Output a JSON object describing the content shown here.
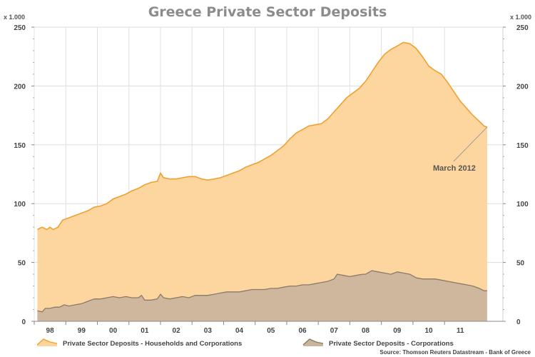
{
  "chart_data": {
    "type": "area",
    "title": "Greece Private Sector Deposits",
    "y_unit_left": "x 1.000",
    "y_unit_right": "x 1.000",
    "ylim": [
      0,
      250
    ],
    "yticks": [
      0,
      50,
      100,
      150,
      200,
      250
    ],
    "xlim": [
      1997.5,
      2012.35
    ],
    "x_tick_labels": [
      {
        "x": 1998.0,
        "label": "98"
      },
      {
        "x": 1999.0,
        "label": "99"
      },
      {
        "x": 2000.0,
        "label": "00"
      },
      {
        "x": 2001.0,
        "label": "01"
      },
      {
        "x": 2002.0,
        "label": "02"
      },
      {
        "x": 2003.0,
        "label": "03"
      },
      {
        "x": 2004.0,
        "label": "04"
      },
      {
        "x": 2005.0,
        "label": "05"
      },
      {
        "x": 2006.0,
        "label": "06"
      },
      {
        "x": 2007.0,
        "label": "07"
      },
      {
        "x": 2008.0,
        "label": "08"
      },
      {
        "x": 2009.0,
        "label": "09"
      },
      {
        "x": 2010.0,
        "label": "10"
      },
      {
        "x": 2011.0,
        "label": "11"
      }
    ],
    "grid": true,
    "legend_position": "bottom",
    "series": [
      {
        "name": "Private Sector Deposits - Households and Corporations",
        "color": "#f0a030",
        "fill": "#fdd49a",
        "points": [
          [
            1997.6,
            78
          ],
          [
            1997.75,
            80
          ],
          [
            1997.9,
            78
          ],
          [
            1998.0,
            80
          ],
          [
            1998.1,
            78
          ],
          [
            1998.25,
            80
          ],
          [
            1998.4,
            86
          ],
          [
            1998.6,
            88
          ],
          [
            1998.8,
            90
          ],
          [
            1999.0,
            92
          ],
          [
            1999.2,
            94
          ],
          [
            1999.4,
            97
          ],
          [
            1999.6,
            98
          ],
          [
            1999.8,
            100
          ],
          [
            2000.0,
            104
          ],
          [
            2000.2,
            106
          ],
          [
            2000.4,
            108
          ],
          [
            2000.6,
            111
          ],
          [
            2000.8,
            113
          ],
          [
            2001.0,
            116
          ],
          [
            2001.2,
            118
          ],
          [
            2001.4,
            119
          ],
          [
            2001.5,
            126
          ],
          [
            2001.6,
            122
          ],
          [
            2001.8,
            121
          ],
          [
            2002.0,
            121
          ],
          [
            2002.2,
            122
          ],
          [
            2002.4,
            123
          ],
          [
            2002.6,
            123
          ],
          [
            2002.8,
            121
          ],
          [
            2003.0,
            120
          ],
          [
            2003.2,
            121
          ],
          [
            2003.4,
            122
          ],
          [
            2003.6,
            124
          ],
          [
            2003.8,
            126
          ],
          [
            2004.0,
            128
          ],
          [
            2004.2,
            131
          ],
          [
            2004.4,
            133
          ],
          [
            2004.6,
            135
          ],
          [
            2004.8,
            138
          ],
          [
            2005.0,
            141
          ],
          [
            2005.2,
            145
          ],
          [
            2005.4,
            149
          ],
          [
            2005.6,
            155
          ],
          [
            2005.8,
            160
          ],
          [
            2006.0,
            163
          ],
          [
            2006.2,
            166
          ],
          [
            2006.4,
            167
          ],
          [
            2006.6,
            168
          ],
          [
            2006.8,
            172
          ],
          [
            2007.0,
            178
          ],
          [
            2007.2,
            184
          ],
          [
            2007.4,
            190
          ],
          [
            2007.6,
            194
          ],
          [
            2007.8,
            198
          ],
          [
            2008.0,
            204
          ],
          [
            2008.2,
            212
          ],
          [
            2008.4,
            220
          ],
          [
            2008.6,
            227
          ],
          [
            2008.8,
            231
          ],
          [
            2009.0,
            234
          ],
          [
            2009.2,
            237
          ],
          [
            2009.4,
            236
          ],
          [
            2009.6,
            232
          ],
          [
            2009.8,
            225
          ],
          [
            2010.0,
            217
          ],
          [
            2010.2,
            213
          ],
          [
            2010.4,
            210
          ],
          [
            2010.6,
            203
          ],
          [
            2010.8,
            195
          ],
          [
            2011.0,
            187
          ],
          [
            2011.2,
            181
          ],
          [
            2011.4,
            175
          ],
          [
            2011.6,
            170
          ],
          [
            2011.75,
            166
          ],
          [
            2011.85,
            165
          ]
        ]
      },
      {
        "name": "Private Sector Deposits - Corporations",
        "color": "#8a7a6a",
        "fill": "#c9b49c",
        "points": [
          [
            1997.6,
            9
          ],
          [
            1997.75,
            8
          ],
          [
            1997.85,
            11
          ],
          [
            1998.0,
            11
          ],
          [
            1998.15,
            12
          ],
          [
            1998.3,
            12
          ],
          [
            1998.45,
            14
          ],
          [
            1998.6,
            13
          ],
          [
            1998.8,
            14
          ],
          [
            1999.0,
            15
          ],
          [
            1999.2,
            17
          ],
          [
            1999.4,
            19
          ],
          [
            1999.6,
            19
          ],
          [
            1999.8,
            20
          ],
          [
            2000.0,
            21
          ],
          [
            2000.2,
            20
          ],
          [
            2000.4,
            21
          ],
          [
            2000.6,
            20
          ],
          [
            2000.8,
            20
          ],
          [
            2000.9,
            22
          ],
          [
            2001.0,
            18
          ],
          [
            2001.2,
            18
          ],
          [
            2001.4,
            19
          ],
          [
            2001.5,
            23
          ],
          [
            2001.6,
            20
          ],
          [
            2001.8,
            19
          ],
          [
            2002.0,
            20
          ],
          [
            2002.2,
            21
          ],
          [
            2002.4,
            20
          ],
          [
            2002.6,
            22
          ],
          [
            2002.8,
            22
          ],
          [
            2003.0,
            22
          ],
          [
            2003.2,
            23
          ],
          [
            2003.4,
            24
          ],
          [
            2003.6,
            25
          ],
          [
            2003.8,
            25
          ],
          [
            2004.0,
            25
          ],
          [
            2004.2,
            26
          ],
          [
            2004.4,
            27
          ],
          [
            2004.6,
            27
          ],
          [
            2004.8,
            27
          ],
          [
            2005.0,
            28
          ],
          [
            2005.2,
            28
          ],
          [
            2005.4,
            29
          ],
          [
            2005.6,
            30
          ],
          [
            2005.8,
            30
          ],
          [
            2006.0,
            31
          ],
          [
            2006.2,
            31
          ],
          [
            2006.4,
            32
          ],
          [
            2006.6,
            33
          ],
          [
            2006.8,
            34
          ],
          [
            2007.0,
            36
          ],
          [
            2007.1,
            40
          ],
          [
            2007.3,
            39
          ],
          [
            2007.5,
            38
          ],
          [
            2007.7,
            39
          ],
          [
            2007.9,
            40
          ],
          [
            2008.0,
            40
          ],
          [
            2008.2,
            43
          ],
          [
            2008.4,
            42
          ],
          [
            2008.6,
            41
          ],
          [
            2008.8,
            40
          ],
          [
            2009.0,
            42
          ],
          [
            2009.2,
            41
          ],
          [
            2009.4,
            40
          ],
          [
            2009.6,
            37
          ],
          [
            2009.8,
            36
          ],
          [
            2010.0,
            36
          ],
          [
            2010.2,
            36
          ],
          [
            2010.4,
            35
          ],
          [
            2010.6,
            34
          ],
          [
            2010.8,
            33
          ],
          [
            2011.0,
            32
          ],
          [
            2011.2,
            31
          ],
          [
            2011.4,
            30
          ],
          [
            2011.6,
            28
          ],
          [
            2011.75,
            26
          ],
          [
            2011.85,
            26
          ]
        ]
      }
    ],
    "annotations": [
      {
        "text": "March 2012",
        "x": 2012.2,
        "y": 166
      }
    ],
    "source": "Source: Thomson Reuters Datastream - Bank of Greece"
  }
}
